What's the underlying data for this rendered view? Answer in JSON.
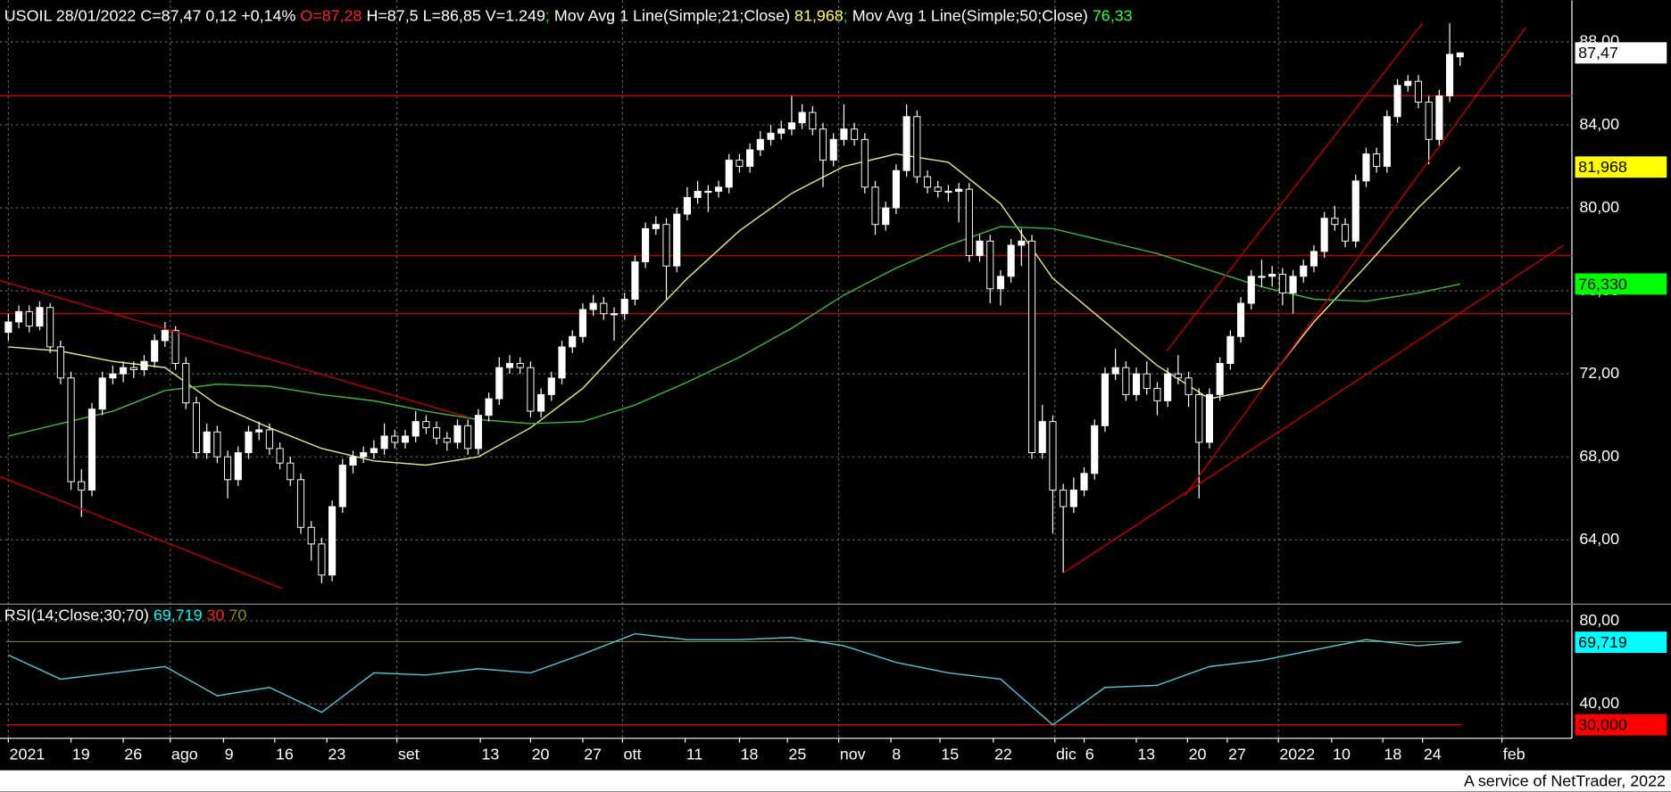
{
  "chart_data": {
    "type": "candlestick",
    "header": [
      {
        "text": "USOIL 28/01/2022 C=87,47 0,12 +0,14% ",
        "color": "#ffffff"
      },
      {
        "text": "O=87,28",
        "color": "#ff2020"
      },
      {
        "text": " H=87,5 L=86,85 V=1.249",
        "color": "#ffffff"
      },
      {
        "text": "; ",
        "color": "#00ff00"
      },
      {
        "text": "Mov Avg 1 Line(Simple;21;Close) ",
        "color": "#ffffff"
      },
      {
        "text": "81,968",
        "color": "#ffff66"
      },
      {
        "text": "; ",
        "color": "#00ff00"
      },
      {
        "text": "Mov Avg 1 Line(Simple;50;Close) ",
        "color": "#ffffff"
      },
      {
        "text": "76,33",
        "color": "#33ff33"
      }
    ],
    "candles": [
      [
        74.0,
        74.9,
        73.6,
        74.5
      ],
      [
        74.5,
        75.3,
        74.2,
        75.0
      ],
      [
        75.0,
        75.3,
        74.0,
        74.3
      ],
      [
        74.3,
        75.5,
        74.1,
        75.2
      ],
      [
        75.2,
        75.4,
        73.0,
        73.3
      ],
      [
        73.3,
        73.6,
        71.5,
        71.8
      ],
      [
        71.8,
        72.1,
        66.4,
        66.8
      ],
      [
        66.8,
        67.4,
        65.1,
        66.4
      ],
      [
        66.4,
        70.6,
        66.1,
        70.3
      ],
      [
        70.3,
        72.1,
        70.0,
        71.8
      ],
      [
        71.8,
        72.4,
        71.5,
        72.0
      ],
      [
        72.0,
        72.6,
        71.6,
        72.3
      ],
      [
        72.3,
        72.6,
        71.8,
        72.2
      ],
      [
        72.2,
        72.9,
        71.9,
        72.6
      ],
      [
        72.6,
        73.9,
        72.3,
        73.6
      ],
      [
        73.6,
        74.5,
        73.3,
        74.1
      ],
      [
        74.1,
        74.3,
        72.2,
        72.5
      ],
      [
        72.5,
        72.8,
        70.3,
        70.6
      ],
      [
        70.6,
        70.9,
        67.9,
        68.2
      ],
      [
        68.2,
        69.6,
        67.9,
        69.2
      ],
      [
        69.2,
        69.5,
        67.7,
        68.0
      ],
      [
        68.0,
        68.3,
        66.0,
        66.9
      ],
      [
        66.9,
        68.5,
        66.6,
        68.2
      ],
      [
        68.2,
        69.5,
        67.9,
        69.2
      ],
      [
        69.2,
        69.7,
        68.8,
        69.3
      ],
      [
        69.3,
        69.6,
        68.1,
        68.4
      ],
      [
        68.4,
        68.7,
        67.4,
        67.7
      ],
      [
        67.7,
        68.0,
        66.6,
        66.9
      ],
      [
        66.9,
        67.2,
        64.3,
        64.6
      ],
      [
        64.6,
        64.9,
        63.0,
        63.8
      ],
      [
        63.8,
        64.1,
        61.9,
        62.3
      ],
      [
        62.3,
        65.9,
        62.0,
        65.6
      ],
      [
        65.6,
        67.9,
        65.3,
        67.6
      ],
      [
        67.6,
        68.3,
        67.2,
        68.0
      ],
      [
        68.0,
        68.5,
        67.7,
        68.2
      ],
      [
        68.2,
        68.8,
        67.9,
        68.4
      ],
      [
        68.4,
        69.6,
        68.1,
        69.0
      ],
      [
        69.0,
        69.3,
        68.4,
        68.7
      ],
      [
        68.7,
        69.3,
        68.4,
        69.0
      ],
      [
        69.0,
        70.2,
        68.7,
        69.7
      ],
      [
        69.7,
        70.0,
        69.1,
        69.4
      ],
      [
        69.4,
        69.7,
        68.6,
        68.9
      ],
      [
        68.9,
        69.2,
        68.3,
        68.7
      ],
      [
        68.7,
        69.8,
        68.4,
        69.5
      ],
      [
        69.5,
        69.8,
        68.1,
        68.4
      ],
      [
        68.4,
        70.3,
        68.1,
        70.0
      ],
      [
        70.0,
        71.1,
        69.7,
        70.8
      ],
      [
        70.8,
        72.8,
        70.5,
        72.3
      ],
      [
        72.3,
        72.9,
        72.0,
        72.5
      ],
      [
        72.5,
        72.8,
        72.0,
        72.3
      ],
      [
        72.3,
        72.6,
        69.9,
        70.2
      ],
      [
        70.2,
        71.3,
        69.9,
        71.0
      ],
      [
        71.0,
        72.1,
        70.7,
        71.8
      ],
      [
        71.8,
        73.6,
        71.5,
        73.3
      ],
      [
        73.3,
        74.1,
        73.0,
        73.8
      ],
      [
        73.8,
        75.4,
        73.5,
        75.1
      ],
      [
        75.1,
        75.8,
        74.8,
        75.4
      ],
      [
        75.4,
        75.7,
        74.6,
        74.9
      ],
      [
        74.9,
        75.2,
        73.6,
        74.9
      ],
      [
        74.9,
        75.9,
        74.6,
        75.6
      ],
      [
        75.6,
        77.7,
        75.3,
        77.4
      ],
      [
        77.4,
        79.3,
        77.1,
        79.0
      ],
      [
        79.0,
        79.6,
        78.7,
        79.2
      ],
      [
        79.2,
        79.5,
        75.6,
        77.2
      ],
      [
        77.2,
        80.0,
        76.9,
        79.7
      ],
      [
        79.7,
        81.0,
        79.4,
        80.5
      ],
      [
        80.5,
        81.3,
        80.2,
        80.8
      ],
      [
        80.8,
        81.1,
        79.8,
        80.8
      ],
      [
        80.8,
        81.3,
        80.5,
        81.0
      ],
      [
        81.0,
        82.6,
        80.7,
        82.3
      ],
      [
        82.3,
        82.6,
        81.7,
        82.0
      ],
      [
        82.0,
        83.1,
        81.7,
        82.8
      ],
      [
        82.8,
        83.7,
        82.5,
        83.3
      ],
      [
        83.3,
        84.0,
        83.0,
        83.6
      ],
      [
        83.6,
        84.2,
        83.3,
        83.8
      ],
      [
        83.8,
        85.4,
        83.5,
        84.1
      ],
      [
        84.1,
        85.0,
        83.8,
        84.6
      ],
      [
        84.6,
        84.9,
        83.5,
        83.8
      ],
      [
        83.8,
        84.1,
        81.0,
        82.3
      ],
      [
        82.3,
        83.6,
        82.0,
        83.3
      ],
      [
        83.3,
        85.0,
        83.0,
        83.8
      ],
      [
        83.8,
        84.1,
        83.0,
        83.3
      ],
      [
        83.3,
        83.6,
        80.7,
        81.0
      ],
      [
        81.0,
        81.3,
        78.7,
        79.2
      ],
      [
        79.2,
        80.3,
        78.9,
        80.0
      ],
      [
        80.0,
        82.1,
        79.7,
        81.8
      ],
      [
        81.8,
        85.0,
        81.5,
        84.4
      ],
      [
        84.4,
        84.7,
        81.2,
        81.5
      ],
      [
        81.5,
        81.8,
        80.7,
        81.0
      ],
      [
        81.0,
        81.3,
        80.5,
        80.8
      ],
      [
        80.8,
        81.1,
        80.3,
        80.8
      ],
      [
        80.8,
        81.2,
        79.3,
        80.9
      ],
      [
        80.9,
        81.2,
        77.4,
        77.7
      ],
      [
        77.7,
        78.7,
        77.4,
        78.4
      ],
      [
        78.4,
        78.7,
        75.4,
        76.1
      ],
      [
        76.1,
        77.0,
        75.3,
        76.7
      ],
      [
        76.7,
        78.5,
        76.4,
        78.2
      ],
      [
        78.2,
        79.0,
        77.2,
        78.4
      ],
      [
        78.4,
        78.7,
        67.9,
        68.2
      ],
      [
        68.2,
        70.5,
        67.9,
        69.7
      ],
      [
        69.7,
        70.0,
        64.3,
        66.4
      ],
      [
        66.4,
        66.7,
        62.4,
        65.6
      ],
      [
        65.6,
        67.0,
        65.3,
        66.4
      ],
      [
        66.4,
        67.5,
        66.1,
        67.2
      ],
      [
        67.2,
        69.8,
        66.9,
        69.5
      ],
      [
        69.5,
        72.3,
        69.2,
        72.0
      ],
      [
        72.0,
        73.2,
        71.7,
        72.3
      ],
      [
        72.3,
        72.6,
        70.7,
        71.0
      ],
      [
        71.0,
        72.3,
        70.7,
        72.0
      ],
      [
        72.0,
        72.6,
        71.0,
        71.3
      ],
      [
        71.3,
        71.6,
        70.0,
        70.7
      ],
      [
        70.7,
        72.3,
        70.4,
        72.0
      ],
      [
        72.0,
        72.9,
        71.5,
        71.8
      ],
      [
        71.8,
        72.1,
        70.4,
        71.0
      ],
      [
        71.0,
        71.3,
        66.0,
        68.7
      ],
      [
        68.7,
        71.3,
        68.4,
        71.0
      ],
      [
        71.0,
        72.8,
        70.7,
        72.5
      ],
      [
        72.5,
        74.1,
        72.2,
        73.8
      ],
      [
        73.8,
        75.7,
        73.5,
        75.4
      ],
      [
        75.4,
        77.0,
        75.1,
        76.7
      ],
      [
        76.7,
        77.5,
        76.2,
        76.7
      ],
      [
        76.7,
        77.2,
        76.2,
        76.8
      ],
      [
        76.8,
        77.1,
        75.3,
        75.9
      ],
      [
        75.9,
        77.0,
        74.9,
        76.7
      ],
      [
        76.7,
        77.5,
        76.4,
        77.2
      ],
      [
        77.2,
        78.2,
        76.9,
        77.9
      ],
      [
        77.9,
        79.8,
        77.6,
        79.5
      ],
      [
        79.5,
        80.1,
        78.9,
        79.2
      ],
      [
        79.2,
        79.5,
        78.1,
        78.4
      ],
      [
        78.4,
        81.6,
        78.1,
        81.3
      ],
      [
        81.3,
        82.9,
        81.0,
        82.6
      ],
      [
        82.6,
        82.9,
        81.7,
        82.0
      ],
      [
        82.0,
        84.7,
        81.7,
        84.4
      ],
      [
        84.4,
        86.2,
        84.1,
        85.9
      ],
      [
        85.9,
        86.4,
        85.6,
        86.1
      ],
      [
        86.1,
        86.4,
        84.8,
        85.1
      ],
      [
        85.1,
        85.4,
        82.1,
        83.3
      ],
      [
        83.3,
        85.7,
        83.0,
        85.4
      ],
      [
        85.4,
        88.9,
        85.1,
        87.4
      ],
      [
        87.28,
        87.5,
        86.85,
        87.47
      ]
    ],
    "up_color": "#ffffff",
    "down_color": "#000000",
    "last_label": "87,47",
    "xlim": [
      -0.8,
      149.7
    ],
    "xticks": [
      {
        "value": 0,
        "label": "2021"
      },
      {
        "value": 6,
        "label": "19"
      },
      {
        "value": 11,
        "label": "26"
      },
      {
        "value": 15.5,
        "label": "ago"
      },
      {
        "value": 20.6,
        "label": "9"
      },
      {
        "value": 25.5,
        "label": "16"
      },
      {
        "value": 30.5,
        "label": "23"
      },
      {
        "value": 37.2,
        "label": "set"
      },
      {
        "value": 45.2,
        "label": "13"
      },
      {
        "value": 50,
        "label": "20"
      },
      {
        "value": 55,
        "label": "27"
      },
      {
        "value": 58.8,
        "label": "ott"
      },
      {
        "value": 64.8,
        "label": "11"
      },
      {
        "value": 70,
        "label": "18"
      },
      {
        "value": 74.6,
        "label": "25"
      },
      {
        "value": 79.5,
        "label": "nov"
      },
      {
        "value": 84.5,
        "label": "8"
      },
      {
        "value": 89.2,
        "label": "15"
      },
      {
        "value": 94.3,
        "label": "22"
      },
      {
        "value": 100.2,
        "label": "dic"
      },
      {
        "value": 103,
        "label": "6"
      },
      {
        "value": 108,
        "label": "13"
      },
      {
        "value": 112.9,
        "label": "20"
      },
      {
        "value": 116.7,
        "label": "27"
      },
      {
        "value": 121.6,
        "label": "2022"
      },
      {
        "value": 126.7,
        "label": "10"
      },
      {
        "value": 131.6,
        "label": "18"
      },
      {
        "value": 135.4,
        "label": "24"
      },
      {
        "value": 143,
        "label": "feb"
      }
    ],
    "ylim": [
      61,
      90
    ],
    "yticks": [
      {
        "value": 64,
        "label": "64,00"
      },
      {
        "value": 68,
        "label": "68,00"
      },
      {
        "value": 72,
        "label": "72,00"
      },
      {
        "value": 76,
        "label": "76,00"
      },
      {
        "value": 80,
        "label": "80,00"
      },
      {
        "value": 84,
        "label": "84,00"
      },
      {
        "value": 88,
        "label": "88,00"
      }
    ],
    "grid": true,
    "series": [
      {
        "color": "#e6e67a",
        "label_color": "#ffff00",
        "value_label": "81,968",
        "x": [
          0,
          5,
          10,
          15,
          20,
          25,
          30,
          35,
          40,
          45,
          50,
          55,
          60,
          65,
          70,
          75,
          80,
          85,
          90,
          95,
          100,
          105,
          110,
          115,
          120,
          125,
          130,
          135,
          139
        ],
        "values": [
          73.3,
          73.1,
          72.6,
          72.3,
          70.5,
          69.4,
          68.4,
          67.8,
          67.6,
          68.0,
          69.4,
          71.3,
          74.0,
          76.6,
          78.9,
          80.7,
          82.0,
          82.6,
          82.2,
          80.2,
          76.6,
          74.5,
          72.4,
          70.8,
          71.3,
          74.5,
          77.2,
          80.0,
          81.968
        ]
      },
      {
        "color": "#3cb83c",
        "label_color": "#00ff00",
        "value_label": "76,330",
        "x": [
          0,
          5,
          10,
          15,
          20,
          25,
          30,
          35,
          40,
          45,
          50,
          55,
          60,
          65,
          70,
          75,
          80,
          85,
          90,
          95,
          100,
          105,
          110,
          115,
          120,
          125,
          130,
          135,
          139
        ],
        "values": [
          69.0,
          69.6,
          70.2,
          71.2,
          71.5,
          71.4,
          71.0,
          70.7,
          70.2,
          69.8,
          69.6,
          69.7,
          70.5,
          71.6,
          72.8,
          74.2,
          75.8,
          77.1,
          78.2,
          79.1,
          79.0,
          78.4,
          77.8,
          77.0,
          76.2,
          75.6,
          75.5,
          75.9,
          76.33
        ]
      }
    ],
    "levels": [
      85.4,
      77.7,
      74.9
    ],
    "level_color": "#c00000",
    "trendlines": [
      [
        -0.8,
        76.5,
        44.1,
        69.9
      ],
      [
        -0.8,
        67.05,
        26.2,
        61.66
      ],
      [
        101,
        62.4,
        148.9,
        78.2
      ],
      [
        110.9,
        73.1,
        135.4,
        88.9
      ],
      [
        112.6,
        66.1,
        145.3,
        88.7
      ]
    ],
    "rsi": {
      "header": [
        {
          "text": "RSI(14;Close;30;70) ",
          "color": "#ffffff"
        },
        {
          "text": "69,719",
          "color": "#00ffff"
        },
        {
          "text": " 30",
          "color": "#ff2020"
        },
        {
          "text": " 70",
          "color": "#909000"
        }
      ],
      "color": "#4fc3d9",
      "label_color": "#00ffff",
      "value_label": "69,719",
      "x": [
        0,
        5,
        10,
        15,
        20,
        25,
        30,
        35,
        40,
        45,
        50,
        55,
        60,
        65,
        70,
        75,
        80,
        85,
        90,
        95,
        100,
        105,
        110,
        115,
        120,
        125,
        130,
        135,
        139
      ],
      "values": [
        63.6,
        52,
        55,
        58,
        44,
        48,
        36,
        55,
        54,
        57,
        55,
        64,
        73.8,
        71,
        71,
        72,
        68,
        60,
        55,
        52,
        30,
        48,
        49,
        58,
        61,
        66,
        71,
        68,
        69.719
      ],
      "ylim": [
        23.5,
        86.5
      ],
      "yticks": [
        {
          "value": 40,
          "label": "40,00"
        },
        {
          "value": 80,
          "label": "80,00"
        }
      ],
      "levels": [
        {
          "value": 30,
          "label": "30,000",
          "color": "#ff0000"
        },
        {
          "value": 70,
          "color": "#808040"
        }
      ]
    },
    "footer": "A service of NetTrader, 2022"
  }
}
